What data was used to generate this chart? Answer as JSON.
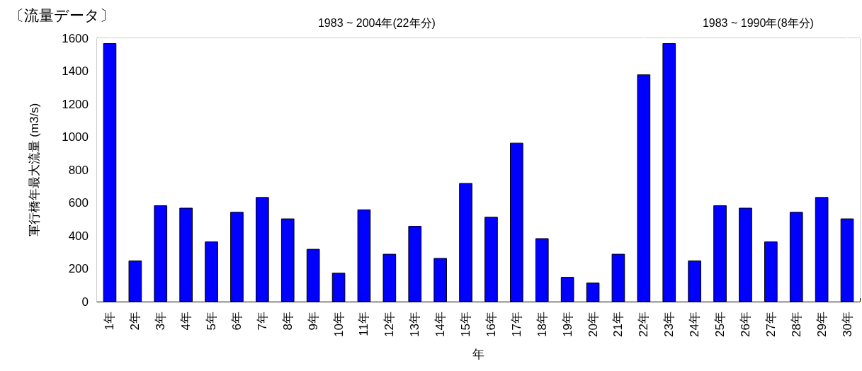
{
  "chart_data": {
    "type": "bar",
    "title": "〔流量データ〕",
    "xlabel": "年",
    "ylabel": "軍行橋年最大流量 (m3/s)",
    "categories": [
      "1年",
      "2年",
      "3年",
      "4年",
      "5年",
      "6年",
      "7年",
      "8年",
      "9年",
      "10年",
      "11年",
      "12年",
      "13年",
      "14年",
      "15年",
      "16年",
      "17年",
      "18年",
      "19年",
      "20年",
      "21年",
      "22年",
      "23年",
      "24年",
      "25年",
      "26年",
      "27年",
      "28年",
      "29年",
      "30年"
    ],
    "values": [
      1570,
      250,
      585,
      570,
      365,
      545,
      635,
      505,
      320,
      175,
      560,
      290,
      460,
      265,
      720,
      515,
      965,
      385,
      150,
      115,
      290,
      1380,
      1570,
      250,
      585,
      570,
      365,
      545,
      635,
      505
    ],
    "color": "#0000ff",
    "ylim": [
      0,
      1600
    ],
    "yticks": [
      0,
      200,
      400,
      600,
      800,
      1000,
      1200,
      1400,
      1600
    ],
    "grid": false,
    "bands": [
      {
        "axis": "x",
        "from": "1年",
        "to": "22年",
        "label": "1983 ~ 2004年(22年分)",
        "color": "#ffffff"
      },
      {
        "axis": "x",
        "from": "23年",
        "to": "30年",
        "label": "1983 ~ 1990年(8年分)",
        "color": "#ffffff"
      }
    ]
  }
}
